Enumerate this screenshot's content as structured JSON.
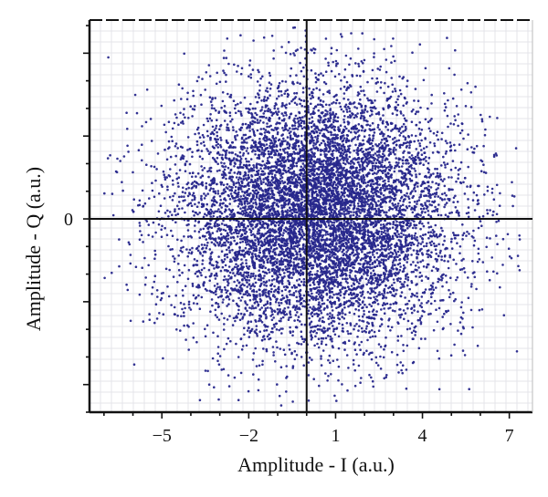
{
  "chart_data": {
    "type": "scatter",
    "title": "",
    "xlabel": "Amplitude - I (a.u.)",
    "ylabel": "Amplitude - Q (a.u.)",
    "x_ticks": [
      {
        "value": -5,
        "label": "−5"
      },
      {
        "value": -2,
        "label": "−2"
      },
      {
        "value": 1,
        "label": "1"
      },
      {
        "value": 4,
        "label": "4"
      },
      {
        "value": 7,
        "label": "7"
      }
    ],
    "y_ticks": [
      {
        "value": 0,
        "label": "0"
      }
    ],
    "xlim": [
      -7.5,
      7.8
    ],
    "ylim": [
      -7.0,
      7.2
    ],
    "grid": true,
    "legend": "none",
    "series": [
      {
        "color": "#27278c",
        "distribution": {
          "count": 9000,
          "center": [
            0.3,
            0.2
          ],
          "std": [
            2.4,
            2.3
          ]
        }
      }
    ]
  }
}
